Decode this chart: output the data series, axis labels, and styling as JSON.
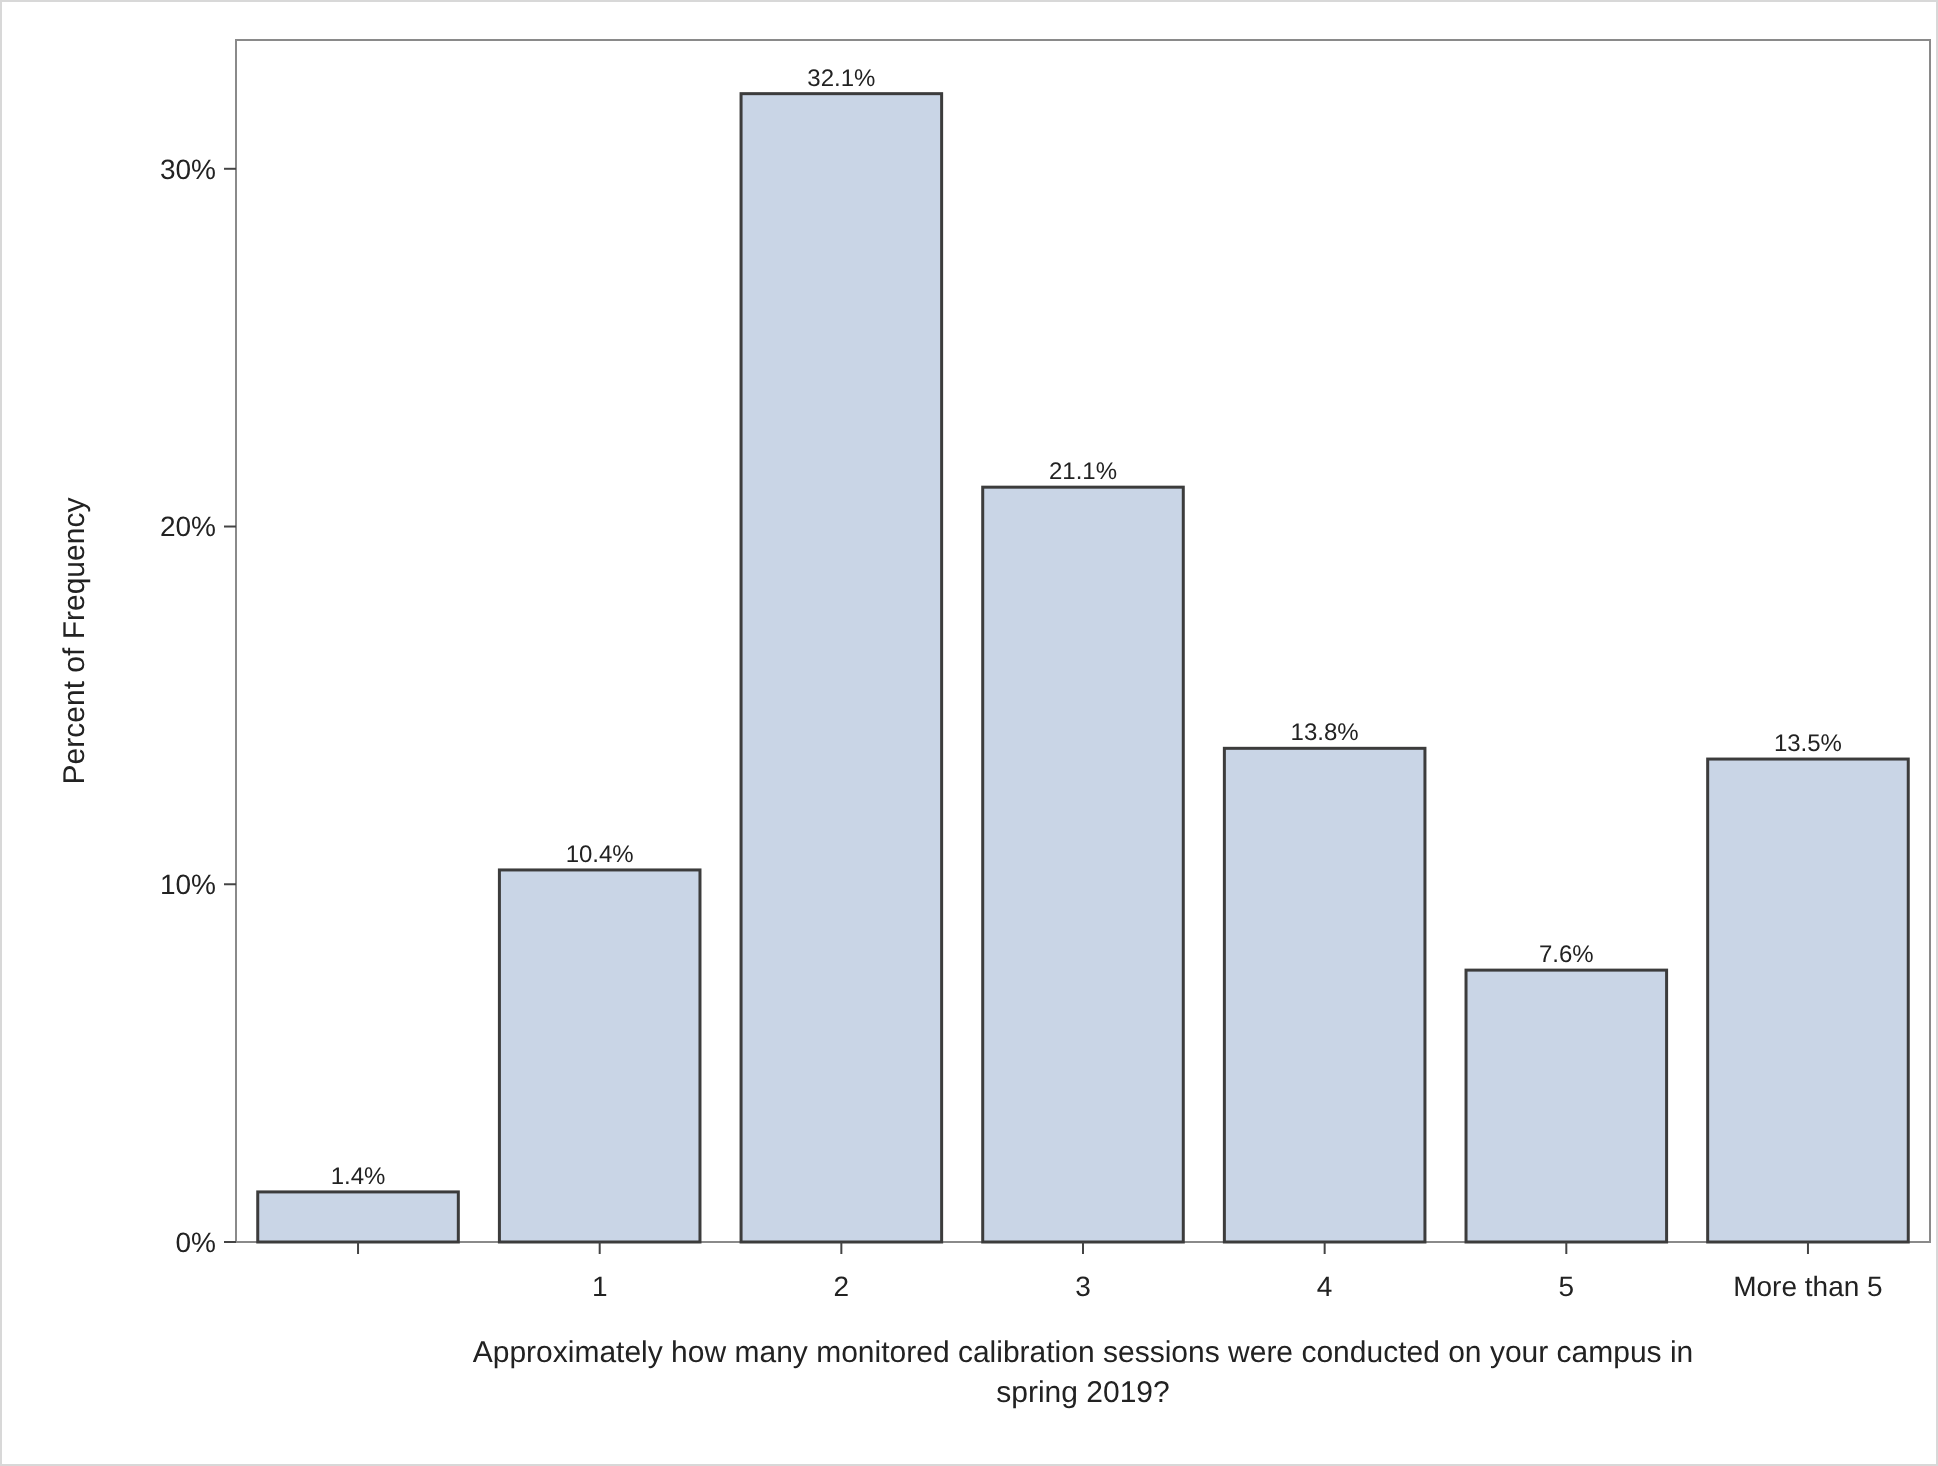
{
  "chart_data": {
    "type": "bar",
    "xlabel": "Approximately how many monitored calibration sessions were conducted on your campus in spring 2019?",
    "ylabel": "Percent of Frequency",
    "categories": [
      null,
      "1",
      "2",
      "3",
      "4",
      "5",
      "More than 5"
    ],
    "values": [
      1.4,
      10.4,
      32.1,
      21.1,
      13.8,
      7.6,
      13.5
    ],
    "value_labels": [
      "1.4%",
      "10.4%",
      "32.1%",
      "21.1%",
      "13.8%",
      "7.6%",
      "13.5%"
    ],
    "color": "#c9d5e6",
    "ylim": [
      0,
      33.6
    ],
    "yticks": [
      {
        "value": 0,
        "label": "0%"
      },
      {
        "value": 10,
        "label": "10%"
      },
      {
        "value": 20,
        "label": "20%"
      },
      {
        "value": 30,
        "label": "30%"
      }
    ],
    "grid": false
  }
}
